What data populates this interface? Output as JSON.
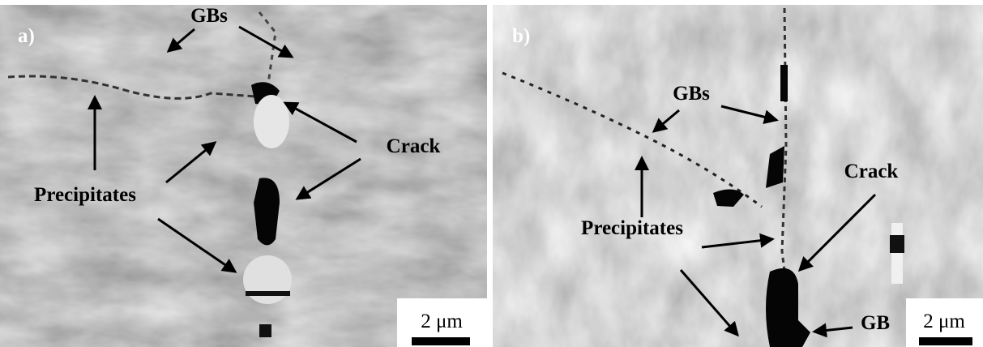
{
  "panels": [
    {
      "label": "a)",
      "annotations": [
        "GBs",
        "Crack",
        "Precipitates"
      ],
      "scale_bar": "2 μm"
    },
    {
      "label": "b)",
      "annotations": [
        "GBs",
        "Crack",
        "Precipitates",
        "GB"
      ],
      "scale_bar": "2 μm"
    }
  ]
}
